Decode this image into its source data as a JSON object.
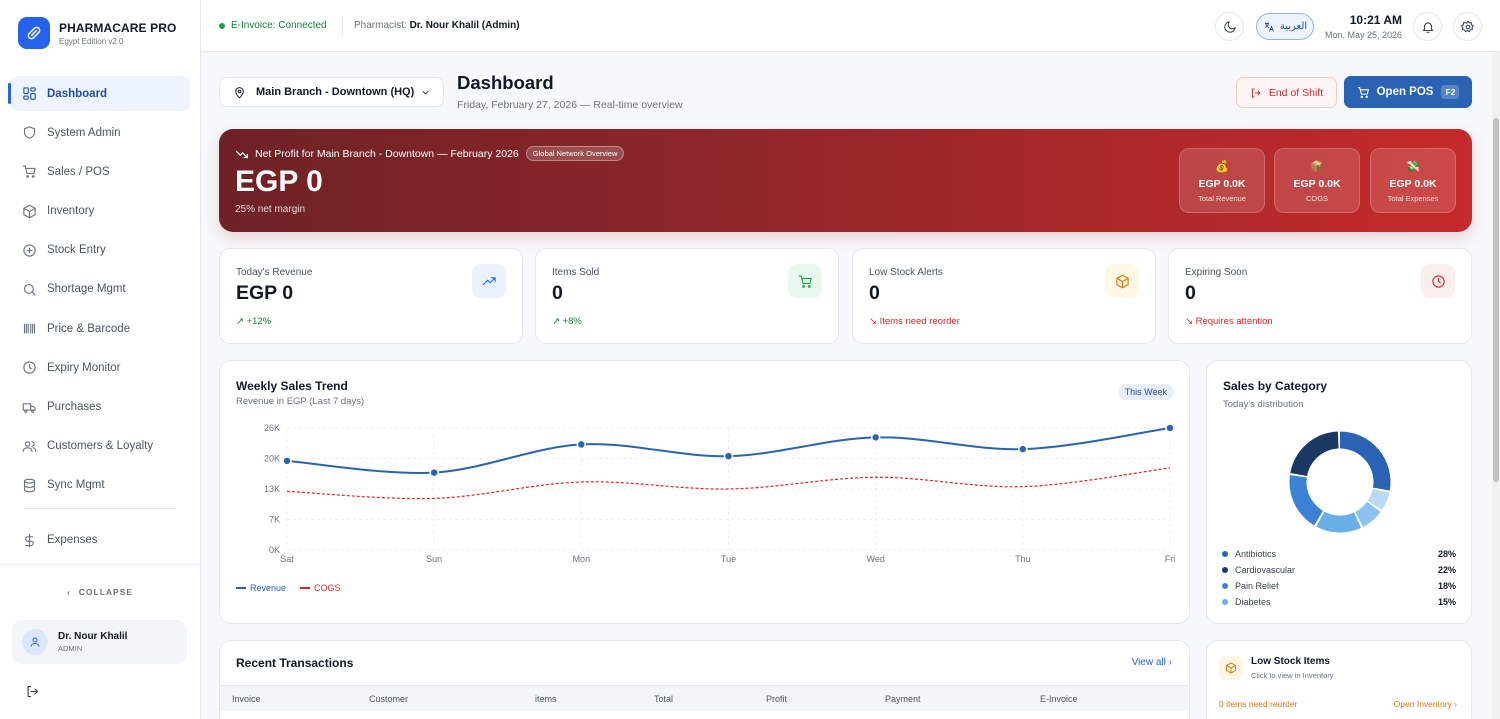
{
  "app": {
    "name": "PHARMACARE PRO",
    "edition": "Egypt Edition v2.0"
  },
  "sidebar": {
    "items": [
      {
        "label": "Dashboard",
        "icon": "grid-icon",
        "active": true
      },
      {
        "label": "System Admin",
        "icon": "shield-icon"
      },
      {
        "label": "Sales / POS",
        "icon": "cart-icon"
      },
      {
        "label": "Inventory",
        "icon": "box-icon"
      },
      {
        "label": "Stock Entry",
        "icon": "plus-circle-icon"
      },
      {
        "label": "Shortage Mgmt",
        "icon": "search-icon"
      },
      {
        "label": "Price & Barcode",
        "icon": "barcode-icon"
      },
      {
        "label": "Expiry Monitor",
        "icon": "clock-icon"
      },
      {
        "label": "Purchases",
        "icon": "truck-icon"
      },
      {
        "label": "Customers & Loyalty",
        "icon": "users-icon"
      },
      {
        "label": "Sync Mgmt",
        "icon": "database-icon"
      },
      {
        "label": "Expenses",
        "icon": "dollar-icon"
      }
    ],
    "collapse_label": "COLLAPSE",
    "user": {
      "name": "Dr. Nour Khalil",
      "role": "ADMIN"
    }
  },
  "topbar": {
    "einvoice_status": "E-Invoice: Connected",
    "pharmacist_label": "Pharmacist:",
    "pharmacist_name": "Dr. Nour Khalil (Admin)",
    "language_label": "العربية",
    "time": "10:21 AM",
    "date": "Mon, May 25, 2026"
  },
  "header": {
    "branch": "Main Branch - Downtown (HQ)",
    "title": "Dashboard",
    "subtitle": "Friday, February 27, 2026 — Real-time overview",
    "end_shift_label": "End of Shift",
    "open_pos_label": "Open POS",
    "open_pos_shortcut": "F2"
  },
  "hero": {
    "title": "Net Profit for Main Branch - Downtown — February 2026",
    "badge": "Global Network Overview",
    "value": "EGP 0",
    "margin": "25% net margin",
    "cards": [
      {
        "icon": "💰",
        "value": "EGP 0.0K",
        "label": "Total Revenue"
      },
      {
        "icon": "📦",
        "value": "EGP 0.0K",
        "label": "COGS"
      },
      {
        "icon": "💸",
        "value": "EGP 0.0K",
        "label": "Total Expenses"
      }
    ]
  },
  "stats": [
    {
      "label": "Today's Revenue",
      "value": "EGP 0",
      "delta": "↗ +12%",
      "delta_color": "#15803d",
      "icon": "trend-up-icon",
      "icon_bg": "#eaf3fd",
      "icon_color": "#2563eb"
    },
    {
      "label": "Items Sold",
      "value": "0",
      "delta": "↗ +8%",
      "delta_color": "#15803d",
      "icon": "cart-icon",
      "icon_bg": "#e9f8ee",
      "icon_color": "#16a34a"
    },
    {
      "label": "Low Stock Alerts",
      "value": "0",
      "delta": "↘ Items need reorder",
      "delta_color": "#dc2626",
      "icon": "box-icon",
      "icon_bg": "#fff8e6",
      "icon_color": "#d97706"
    },
    {
      "label": "Expiring Soon",
      "value": "0",
      "delta": "↘ Requires attention",
      "delta_color": "#dc2626",
      "icon": "clock-icon",
      "icon_bg": "#fdeeee",
      "icon_color": "#dc2626"
    }
  ],
  "trend": {
    "title": "Weekly Sales Trend",
    "subtitle": "Revenue in EGP (Last 7 days)",
    "chip": "This Week"
  },
  "chart_data": {
    "type": "line",
    "x": [
      "Sat",
      "Sun",
      "Mon",
      "Tue",
      "Wed",
      "Thu",
      "Fri"
    ],
    "y_ticks": [
      "26K",
      "20K",
      "13K",
      "7K",
      "0K"
    ],
    "ylim": [
      0,
      26000
    ],
    "series": [
      {
        "name": "Revenue",
        "color": "#2a63b4",
        "values": [
          19000,
          16500,
          22500,
          20000,
          24000,
          21500,
          26500
        ]
      },
      {
        "name": "COGS",
        "color": "#dc2626",
        "values": [
          12500,
          11000,
          14500,
          13000,
          15500,
          13500,
          17500
        ]
      }
    ],
    "grid": true,
    "legend": "bottom-left"
  },
  "category": {
    "title": "Sales by Category",
    "subtitle": "Today's distribution",
    "items": [
      {
        "label": "Antibiotics",
        "pct": "28%",
        "color": "#2a63b4"
      },
      {
        "label": "Cardiovascular",
        "pct": "22%",
        "color": "#1b3864"
      },
      {
        "label": "Pain Relief",
        "pct": "18%",
        "color": "#3b82d6"
      },
      {
        "label": "Diabetes",
        "pct": "15%",
        "color": "#6aaee9"
      }
    ]
  },
  "transactions": {
    "title": "Recent Transactions",
    "view_all": "View all",
    "columns": [
      "Invoice",
      "Customer",
      "items",
      "Total",
      "Profit",
      "Payment",
      "E-Invoice"
    ]
  },
  "low_stock": {
    "title": "Low Stock Items",
    "subtitle": "Click to view in Inventory",
    "count_text": "0 items need reorder",
    "link": "Open Inventory"
  }
}
